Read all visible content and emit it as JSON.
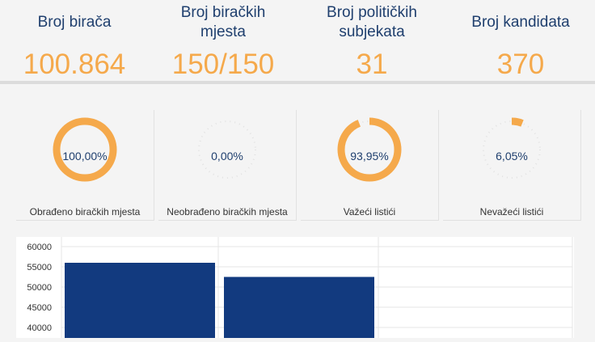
{
  "stats": [
    {
      "label_lines": [
        "Broj birača"
      ],
      "value": "100.864"
    },
    {
      "label_lines": [
        "Broj biračkih",
        "mjesta"
      ],
      "value": "150/150"
    },
    {
      "label_lines": [
        "Broj političkih",
        "subjekata"
      ],
      "value": "31"
    },
    {
      "label_lines": [
        "Broj kandidata"
      ],
      "value": "370"
    }
  ],
  "gauges": [
    {
      "percent_text": "100,00%",
      "fraction": 1.0,
      "label": "Obrađeno biračkih mjesta"
    },
    {
      "percent_text": "0,00%",
      "fraction": 0.0,
      "label": "Neobrađeno biračkih mjesta"
    },
    {
      "percent_text": "93,95%",
      "fraction": 0.9395,
      "label": "Važeći listići"
    },
    {
      "percent_text": "6,05%",
      "fraction": 0.0605,
      "label": "Nevažeći listići"
    }
  ],
  "colors": {
    "accent": "#f5a94b",
    "title": "#1f3f6e",
    "bar": "#123a7f"
  },
  "chart_data": {
    "type": "bar",
    "categories": [
      "",
      ""
    ],
    "values": [
      56000,
      52500
    ],
    "yticks": [
      "60000",
      "55000",
      "50000",
      "45000",
      "40000"
    ],
    "ylim": [
      38000,
      60000
    ]
  }
}
